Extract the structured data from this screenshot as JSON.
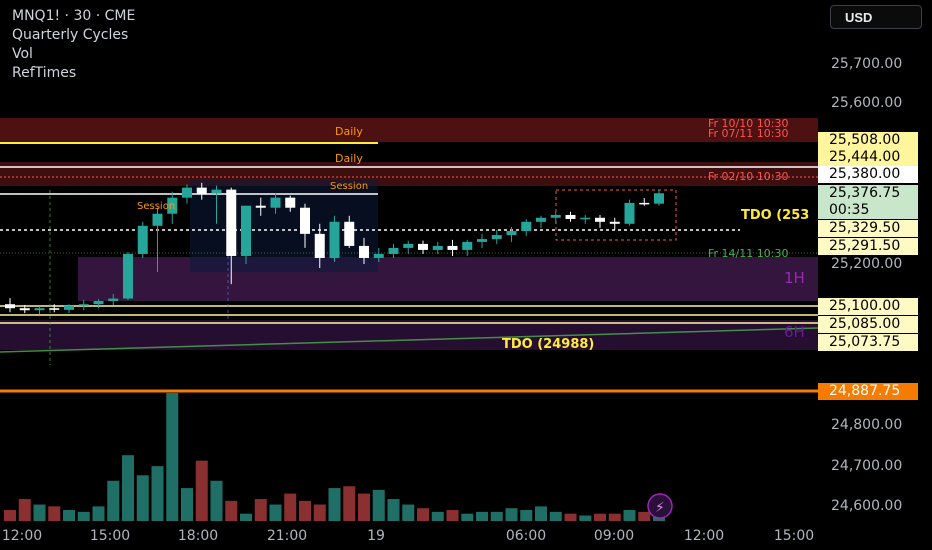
{
  "header": {
    "symbol_line": "MNQ1! · 30 · CME",
    "indicators": [
      "Quarterly Cycles",
      "Vol",
      "RefTimes"
    ]
  },
  "currency_button": "USD",
  "price_axis": {
    "ticks": [
      "25,700.00",
      "25,600.00",
      "25,200.00",
      "24,800.00",
      "24,700.00",
      "24,600.00"
    ],
    "badges": [
      {
        "text": "25,508.00",
        "bg": "#fff59d",
        "fg": "#000000"
      },
      {
        "text": "25,444.00",
        "bg": "#fff59d",
        "fg": "#000000"
      },
      {
        "text": "25,380.00",
        "bg": "#ffffff",
        "fg": "#000000"
      },
      {
        "text": "25,376.75",
        "bg": "#c8e6c9",
        "fg": "#000000"
      },
      {
        "text": "00:35",
        "bg": "#c8e6c9",
        "fg": "#000000"
      },
      {
        "text": "25,329.50",
        "bg": "#fff9c4",
        "fg": "#000000"
      },
      {
        "text": "25,291.50",
        "bg": "#fff9c4",
        "fg": "#000000"
      },
      {
        "text": "25,100.00",
        "bg": "#fff9c4",
        "fg": "#000000"
      },
      {
        "text": "25,085.00",
        "bg": "#fff9c4",
        "fg": "#000000"
      },
      {
        "text": "25,073.75",
        "bg": "#fff9c4",
        "fg": "#000000"
      },
      {
        "text": "24,887.75",
        "bg": "#f57c00",
        "fg": "#ffffff"
      }
    ]
  },
  "time_axis": {
    "ticks": [
      "12:00",
      "15:00",
      "18:00",
      "21:00",
      "19",
      "06:00",
      "09:00",
      "12:00",
      "15:00"
    ]
  },
  "annotations": {
    "daily_1": "Daily",
    "daily_2": "Daily",
    "session_1": "Session",
    "session_2": "Session",
    "ref_1": "Fr 10/10 10:30",
    "ref_2": "Fr 07/11 10:30",
    "ref_3": "Fr 02/10 10:30",
    "ref_4": "Fr 14/11 10:30",
    "tdo_1": "TDO (253",
    "tdo_2": "TDO (24988)",
    "tf_1h": "1H",
    "tf_6h": "6H"
  },
  "colors": {
    "bull": "#26a69a",
    "bear": "#ffffff",
    "vol_up": "#1f6f67",
    "vol_down": "#8b3030",
    "daily": "#ffeb3b",
    "session": "#ff9800",
    "ref": "#ff5252",
    "tdo": "#ffeb3b",
    "orange_line": "#f57c00",
    "purple": "#9c27b0"
  },
  "chart_data": {
    "type": "candlestick",
    "y_range": [
      24560,
      25780
    ],
    "x": [
      "12:00",
      "12:30",
      "13:00",
      "13:30",
      "14:00",
      "14:30",
      "15:00",
      "15:30",
      "16:00",
      "16:30",
      "17:00",
      "17:30",
      "18:00",
      "18:30",
      "19:00",
      "19:30",
      "20:00",
      "20:30",
      "21:00",
      "21:30",
      "22:00",
      "22:30",
      "23:00",
      "23:30",
      "00:00",
      "00:30",
      "01:00",
      "01:30",
      "02:00",
      "02:30",
      "03:00",
      "03:30",
      "04:00",
      "04:30",
      "05:00",
      "05:30",
      "06:00",
      "06:30",
      "07:00",
      "07:30",
      "08:00",
      "08:30",
      "09:00",
      "09:30",
      "10:00"
    ],
    "ohlc": [
      [
        25100,
        25115,
        25080,
        25090
      ],
      [
        25090,
        25098,
        25078,
        25085
      ],
      [
        25085,
        25095,
        25075,
        25090
      ],
      [
        25090,
        25100,
        25080,
        25086
      ],
      [
        25086,
        25100,
        25078,
        25096
      ],
      [
        25096,
        25110,
        25085,
        25100
      ],
      [
        25100,
        25112,
        25090,
        25108
      ],
      [
        25108,
        25125,
        25098,
        25114
      ],
      [
        25114,
        25230,
        25110,
        25225
      ],
      [
        25225,
        25305,
        25215,
        25295
      ],
      [
        25295,
        25340,
        25180,
        25325
      ],
      [
        25325,
        25380,
        25300,
        25365
      ],
      [
        25365,
        25398,
        25350,
        25390
      ],
      [
        25390,
        25402,
        25360,
        25375
      ],
      [
        25375,
        25395,
        25300,
        25385
      ],
      [
        25385,
        25390,
        25150,
        25220
      ],
      [
        25220,
        25345,
        25200,
        25345
      ],
      [
        25345,
        25365,
        25320,
        25340
      ],
      [
        25340,
        25375,
        25325,
        25365
      ],
      [
        25365,
        25370,
        25330,
        25340
      ],
      [
        25340,
        25350,
        25240,
        25275
      ],
      [
        25275,
        25300,
        25190,
        25215
      ],
      [
        25215,
        25320,
        25205,
        25305
      ],
      [
        25305,
        25320,
        25240,
        25245
      ],
      [
        25245,
        25265,
        25200,
        25215
      ],
      [
        25215,
        25240,
        25205,
        25225
      ],
      [
        25225,
        25250,
        25215,
        25240
      ],
      [
        25240,
        25258,
        25225,
        25250
      ],
      [
        25250,
        25258,
        25225,
        25235
      ],
      [
        25235,
        25255,
        25225,
        25245
      ],
      [
        25245,
        25260,
        25220,
        25235
      ],
      [
        25235,
        25260,
        25220,
        25255
      ],
      [
        25255,
        25275,
        25240,
        25262
      ],
      [
        25262,
        25285,
        25250,
        25272
      ],
      [
        25272,
        25292,
        25255,
        25282
      ],
      [
        25282,
        25312,
        25270,
        25305
      ],
      [
        25305,
        25320,
        25290,
        25315
      ],
      [
        25315,
        25330,
        25300,
        25322
      ],
      [
        25322,
        25330,
        25305,
        25312
      ],
      [
        25312,
        25322,
        25300,
        25315
      ],
      [
        25315,
        25322,
        25290,
        25305
      ],
      [
        25305,
        25315,
        25285,
        25300
      ],
      [
        25300,
        25360,
        25295,
        25352
      ],
      [
        25352,
        25364,
        25345,
        25350
      ],
      [
        25350,
        25385,
        25345,
        25376
      ]
    ],
    "volume": [
      6,
      12,
      9,
      8,
      6,
      5,
      8,
      22,
      36,
      25,
      30,
      70,
      18,
      33,
      22,
      11,
      4,
      12,
      9,
      15,
      11,
      9,
      18,
      19,
      15,
      17,
      12,
      9,
      7,
      5,
      6,
      4,
      5,
      5,
      7,
      6,
      8,
      5,
      4,
      3,
      4,
      4,
      6,
      5,
      4
    ]
  }
}
